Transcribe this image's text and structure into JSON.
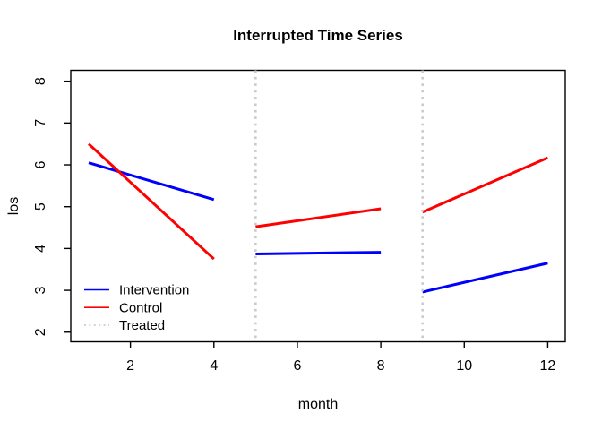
{
  "colors": {
    "background": "#FFFFFF",
    "axis": "#000000",
    "text": "#000000",
    "intervention": "#0000FF",
    "control": "#FF0000",
    "treated": "#C9C9C9"
  },
  "chart_data": {
    "type": "line",
    "title": "Interrupted Time Series",
    "xlabel": "month",
    "ylabel": "los",
    "xlim": [
      0.57,
      12.42
    ],
    "ylim": [
      1.77,
      8.26
    ],
    "x_ticks": [
      2,
      4,
      6,
      8,
      10,
      12
    ],
    "y_ticks": [
      2,
      3,
      4,
      5,
      6,
      7,
      8
    ],
    "grid": false,
    "legend_position": "inside-bottom-left",
    "series": [
      {
        "name": "Intervention",
        "color": "#0000FF",
        "style": "solid",
        "segments": [
          {
            "x": [
              1,
              4
            ],
            "y": [
              6.05,
              5.17
            ]
          },
          {
            "x": [
              5,
              8
            ],
            "y": [
              3.87,
              3.91
            ]
          },
          {
            "x": [
              9,
              12
            ],
            "y": [
              2.96,
              3.65
            ]
          }
        ]
      },
      {
        "name": "Control",
        "color": "#FF0000",
        "style": "solid",
        "segments": [
          {
            "x": [
              1,
              4
            ],
            "y": [
              6.5,
              3.75
            ]
          },
          {
            "x": [
              5,
              8
            ],
            "y": [
              4.52,
              4.95
            ]
          },
          {
            "x": [
              9,
              12
            ],
            "y": [
              4.87,
              6.17
            ]
          }
        ]
      },
      {
        "name": "Treated",
        "color": "#C9C9C9",
        "style": "dotted",
        "vlines": [
          5,
          9
        ]
      }
    ],
    "legend": [
      {
        "label": "Intervention",
        "color": "#0000FF",
        "style": "solid"
      },
      {
        "label": "Control",
        "color": "#FF0000",
        "style": "solid"
      },
      {
        "label": "Treated",
        "color": "#C9C9C9",
        "style": "dotted"
      }
    ]
  }
}
